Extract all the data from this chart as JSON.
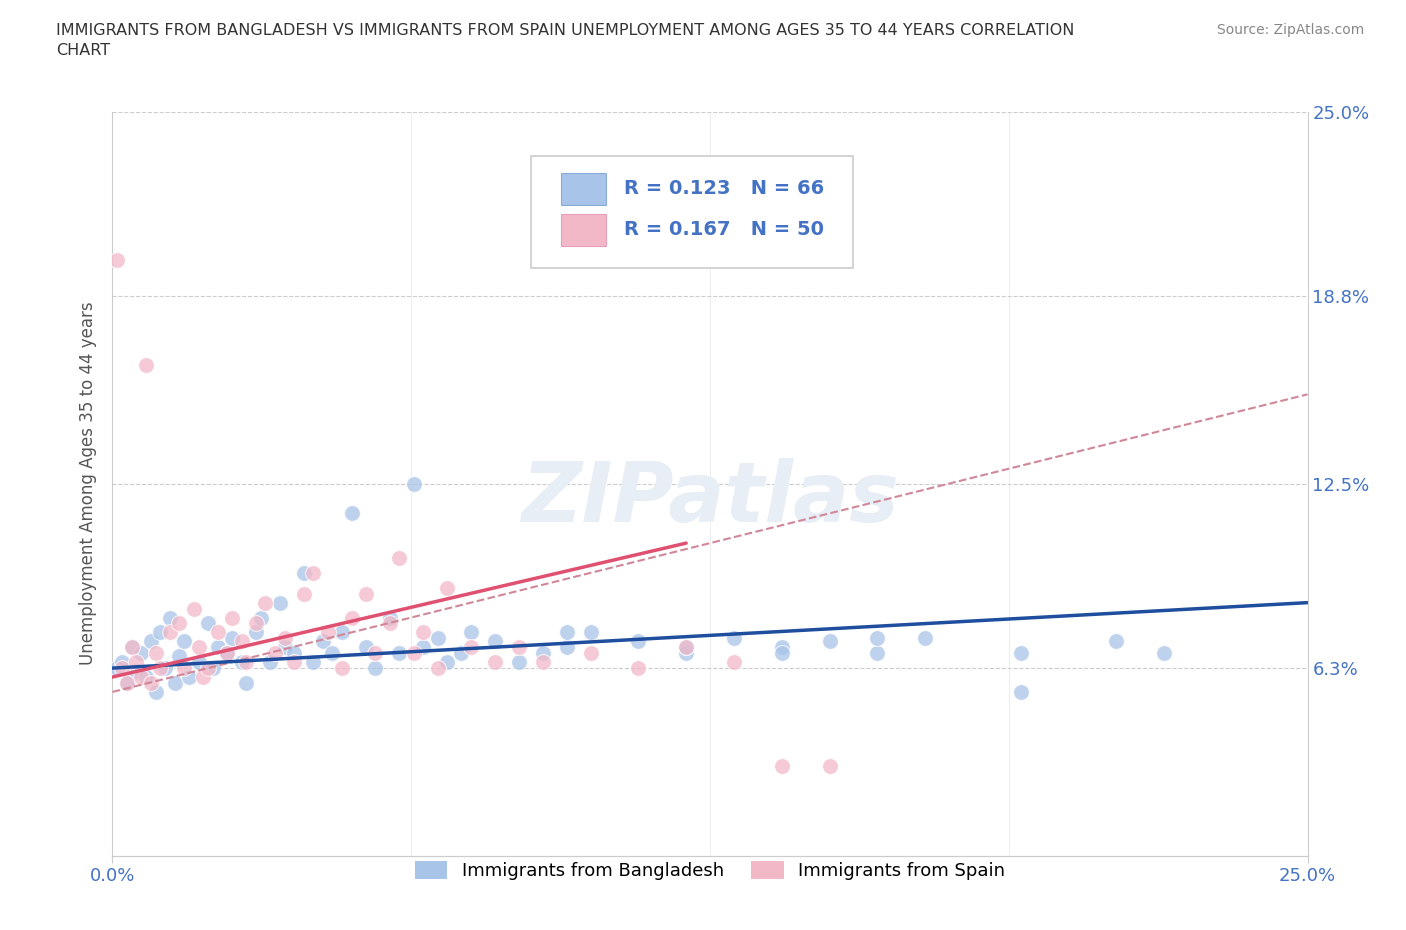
{
  "title": "IMMIGRANTS FROM BANGLADESH VS IMMIGRANTS FROM SPAIN UNEMPLOYMENT AMONG AGES 35 TO 44 YEARS CORRELATION\nCHART",
  "source_text": "Source: ZipAtlas.com",
  "ylabel": "Unemployment Among Ages 35 to 44 years",
  "xlim": [
    0.0,
    0.25
  ],
  "ylim": [
    0.0,
    0.25
  ],
  "ytick_positions": [
    0.063,
    0.125,
    0.188,
    0.25
  ],
  "ytick_labels": [
    "6.3%",
    "12.5%",
    "18.8%",
    "25.0%"
  ],
  "xtick_positions": [
    0.0,
    0.25
  ],
  "xtick_labels": [
    "0.0%",
    "25.0%"
  ],
  "grid_color": "#cccccc",
  "background_color": "#ffffff",
  "watermark_text": "ZIPatlas",
  "legend_R1": "R = 0.123",
  "legend_N1": "N = 66",
  "legend_R2": "R = 0.167",
  "legend_N2": "N = 50",
  "color_bangladesh": "#a8c4e8",
  "color_spain": "#f2b8c8",
  "color_tick_blue": "#4472c4",
  "trend_color_bangladesh": "#1f4e9e",
  "trend_color_spain": "#e05070",
  "trend_dash_color": "#d08898",
  "legend_text_color": "#4472c4",
  "source_color": "#888888",
  "title_color": "#333333",
  "ylabel_color": "#555555",
  "bottom_legend_label1": "Immigrants from Bangladesh",
  "bottom_legend_label2": "Immigrants from Spain",
  "bangladesh_x": [
    0.001,
    0.002,
    0.003,
    0.004,
    0.005,
    0.006,
    0.007,
    0.008,
    0.009,
    0.01,
    0.011,
    0.012,
    0.013,
    0.014,
    0.015,
    0.016,
    0.018,
    0.02,
    0.021,
    0.022,
    0.024,
    0.025,
    0.027,
    0.028,
    0.03,
    0.031,
    0.033,
    0.035,
    0.036,
    0.038,
    0.04,
    0.042,
    0.044,
    0.046,
    0.048,
    0.05,
    0.053,
    0.055,
    0.058,
    0.06,
    0.063,
    0.065,
    0.068,
    0.07,
    0.073,
    0.075,
    0.08,
    0.085,
    0.09,
    0.095,
    0.1,
    0.11,
    0.12,
    0.13,
    0.14,
    0.15,
    0.16,
    0.17,
    0.19,
    0.21,
    0.22,
    0.16,
    0.19,
    0.12,
    0.14,
    0.095
  ],
  "bangladesh_y": [
    0.063,
    0.065,
    0.058,
    0.07,
    0.062,
    0.068,
    0.06,
    0.072,
    0.055,
    0.075,
    0.063,
    0.08,
    0.058,
    0.067,
    0.072,
    0.06,
    0.065,
    0.078,
    0.063,
    0.07,
    0.068,
    0.073,
    0.065,
    0.058,
    0.075,
    0.08,
    0.065,
    0.085,
    0.07,
    0.068,
    0.095,
    0.065,
    0.072,
    0.068,
    0.075,
    0.115,
    0.07,
    0.063,
    0.08,
    0.068,
    0.125,
    0.07,
    0.073,
    0.065,
    0.068,
    0.075,
    0.072,
    0.065,
    0.068,
    0.07,
    0.075,
    0.072,
    0.068,
    0.073,
    0.07,
    0.072,
    0.068,
    0.073,
    0.068,
    0.072,
    0.068,
    0.073,
    0.055,
    0.07,
    0.068,
    0.075
  ],
  "spain_x": [
    0.001,
    0.002,
    0.003,
    0.004,
    0.005,
    0.006,
    0.007,
    0.008,
    0.009,
    0.01,
    0.012,
    0.014,
    0.015,
    0.017,
    0.018,
    0.019,
    0.02,
    0.022,
    0.024,
    0.025,
    0.027,
    0.028,
    0.03,
    0.032,
    0.034,
    0.036,
    0.038,
    0.04,
    0.042,
    0.045,
    0.048,
    0.05,
    0.053,
    0.055,
    0.058,
    0.06,
    0.063,
    0.065,
    0.068,
    0.07,
    0.075,
    0.08,
    0.085,
    0.09,
    0.1,
    0.11,
    0.12,
    0.13,
    0.14,
    0.15
  ],
  "spain_y": [
    0.2,
    0.063,
    0.058,
    0.07,
    0.065,
    0.06,
    0.165,
    0.058,
    0.068,
    0.063,
    0.075,
    0.078,
    0.063,
    0.083,
    0.07,
    0.06,
    0.063,
    0.075,
    0.068,
    0.08,
    0.072,
    0.065,
    0.078,
    0.085,
    0.068,
    0.073,
    0.065,
    0.088,
    0.095,
    0.075,
    0.063,
    0.08,
    0.088,
    0.068,
    0.078,
    0.1,
    0.068,
    0.075,
    0.063,
    0.09,
    0.07,
    0.065,
    0.07,
    0.065,
    0.068,
    0.063,
    0.07,
    0.065,
    0.03,
    0.03
  ],
  "trend_b_x0": 0.0,
  "trend_b_x1": 0.25,
  "trend_b_y0": 0.063,
  "trend_b_y1": 0.085,
  "trend_s_x0": 0.0,
  "trend_s_x1": 0.12,
  "trend_s_y0": 0.06,
  "trend_s_y1": 0.105,
  "trend_dash_x0": 0.0,
  "trend_dash_x1": 0.25,
  "trend_dash_y0": 0.055,
  "trend_dash_y1": 0.155
}
